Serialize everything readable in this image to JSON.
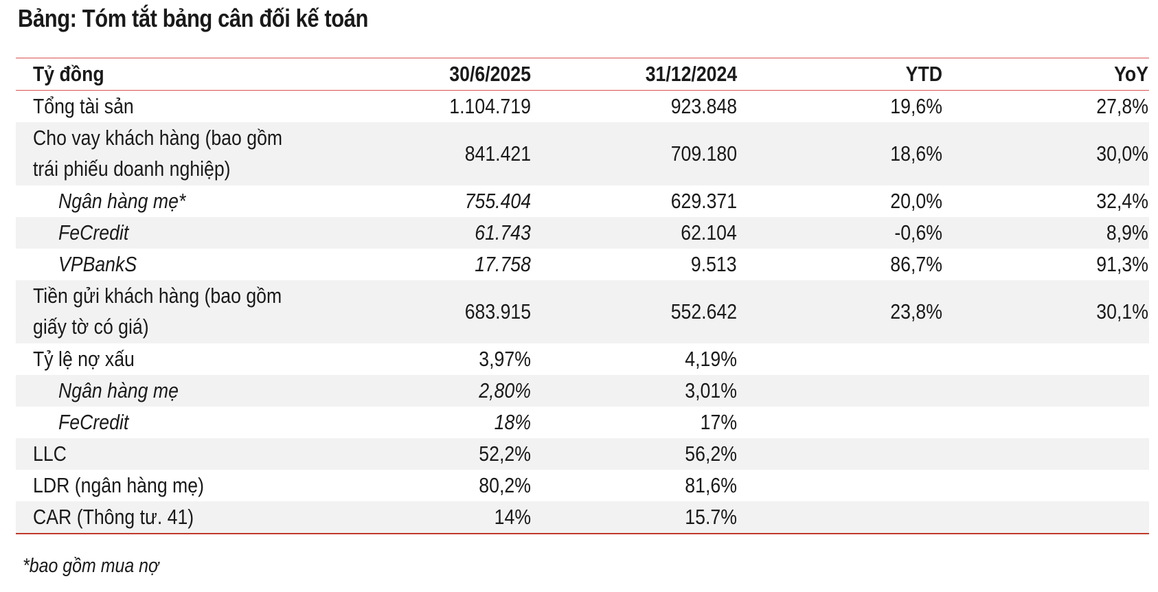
{
  "title": "Bảng: Tóm tắt bảng cân đối kế toán",
  "header": {
    "label": "Tỷ đồng",
    "col1": "30/6/2025",
    "col2": "31/12/2024",
    "col3": "YTD",
    "col4": "YoY"
  },
  "rows": [
    {
      "label": "Tổng tài sản",
      "c1": "1.104.719",
      "c2": "923.848",
      "c3": "19,6%",
      "c4": "27,8%"
    },
    {
      "label": "Cho vay khách hàng (bao gồm trái phiếu doanh nghiệp)",
      "c1": "841.421",
      "c2": "709.180",
      "c3": "18,6%",
      "c4": "30,0%"
    },
    {
      "label": "Ngân hàng mẹ*",
      "c1": "755.404",
      "c2": "629.371",
      "c3": "20,0%",
      "c4": "32,4%"
    },
    {
      "label": "FeCredit",
      "c1": "61.743",
      "c2": "62.104",
      "c3": "-0,6%",
      "c4": "8,9%"
    },
    {
      "label": "VPBankS",
      "c1": "17.758",
      "c2": "9.513",
      "c3": "86,7%",
      "c4": "91,3%"
    },
    {
      "label": "Tiền gửi khách hàng (bao gồm giấy tờ có giá)",
      "c1": "683.915",
      "c2": "552.642",
      "c3": "23,8%",
      "c4": "30,1%"
    },
    {
      "label": "Tỷ lệ nợ xấu",
      "c1": "3,97%",
      "c2": "4,19%"
    },
    {
      "label": "Ngân hàng mẹ",
      "c1": "2,80%",
      "c2": "3,01%"
    },
    {
      "label": "FeCredit",
      "c1": "18%",
      "c2": "17%"
    },
    {
      "label": "LLC",
      "c1": "52,2%",
      "c2": "56,2%"
    },
    {
      "label": "LDR (ngân hàng mẹ)",
      "c1": "80,2%",
      "c2": "81,6%"
    },
    {
      "label": "CAR (Thông tư. 41)",
      "c1": "14%",
      "c2": "15.7%"
    }
  ],
  "footnote": "*bao gồm mua nợ",
  "colors": {
    "rule": "#d9534f",
    "shade": "#f2f2f2"
  }
}
